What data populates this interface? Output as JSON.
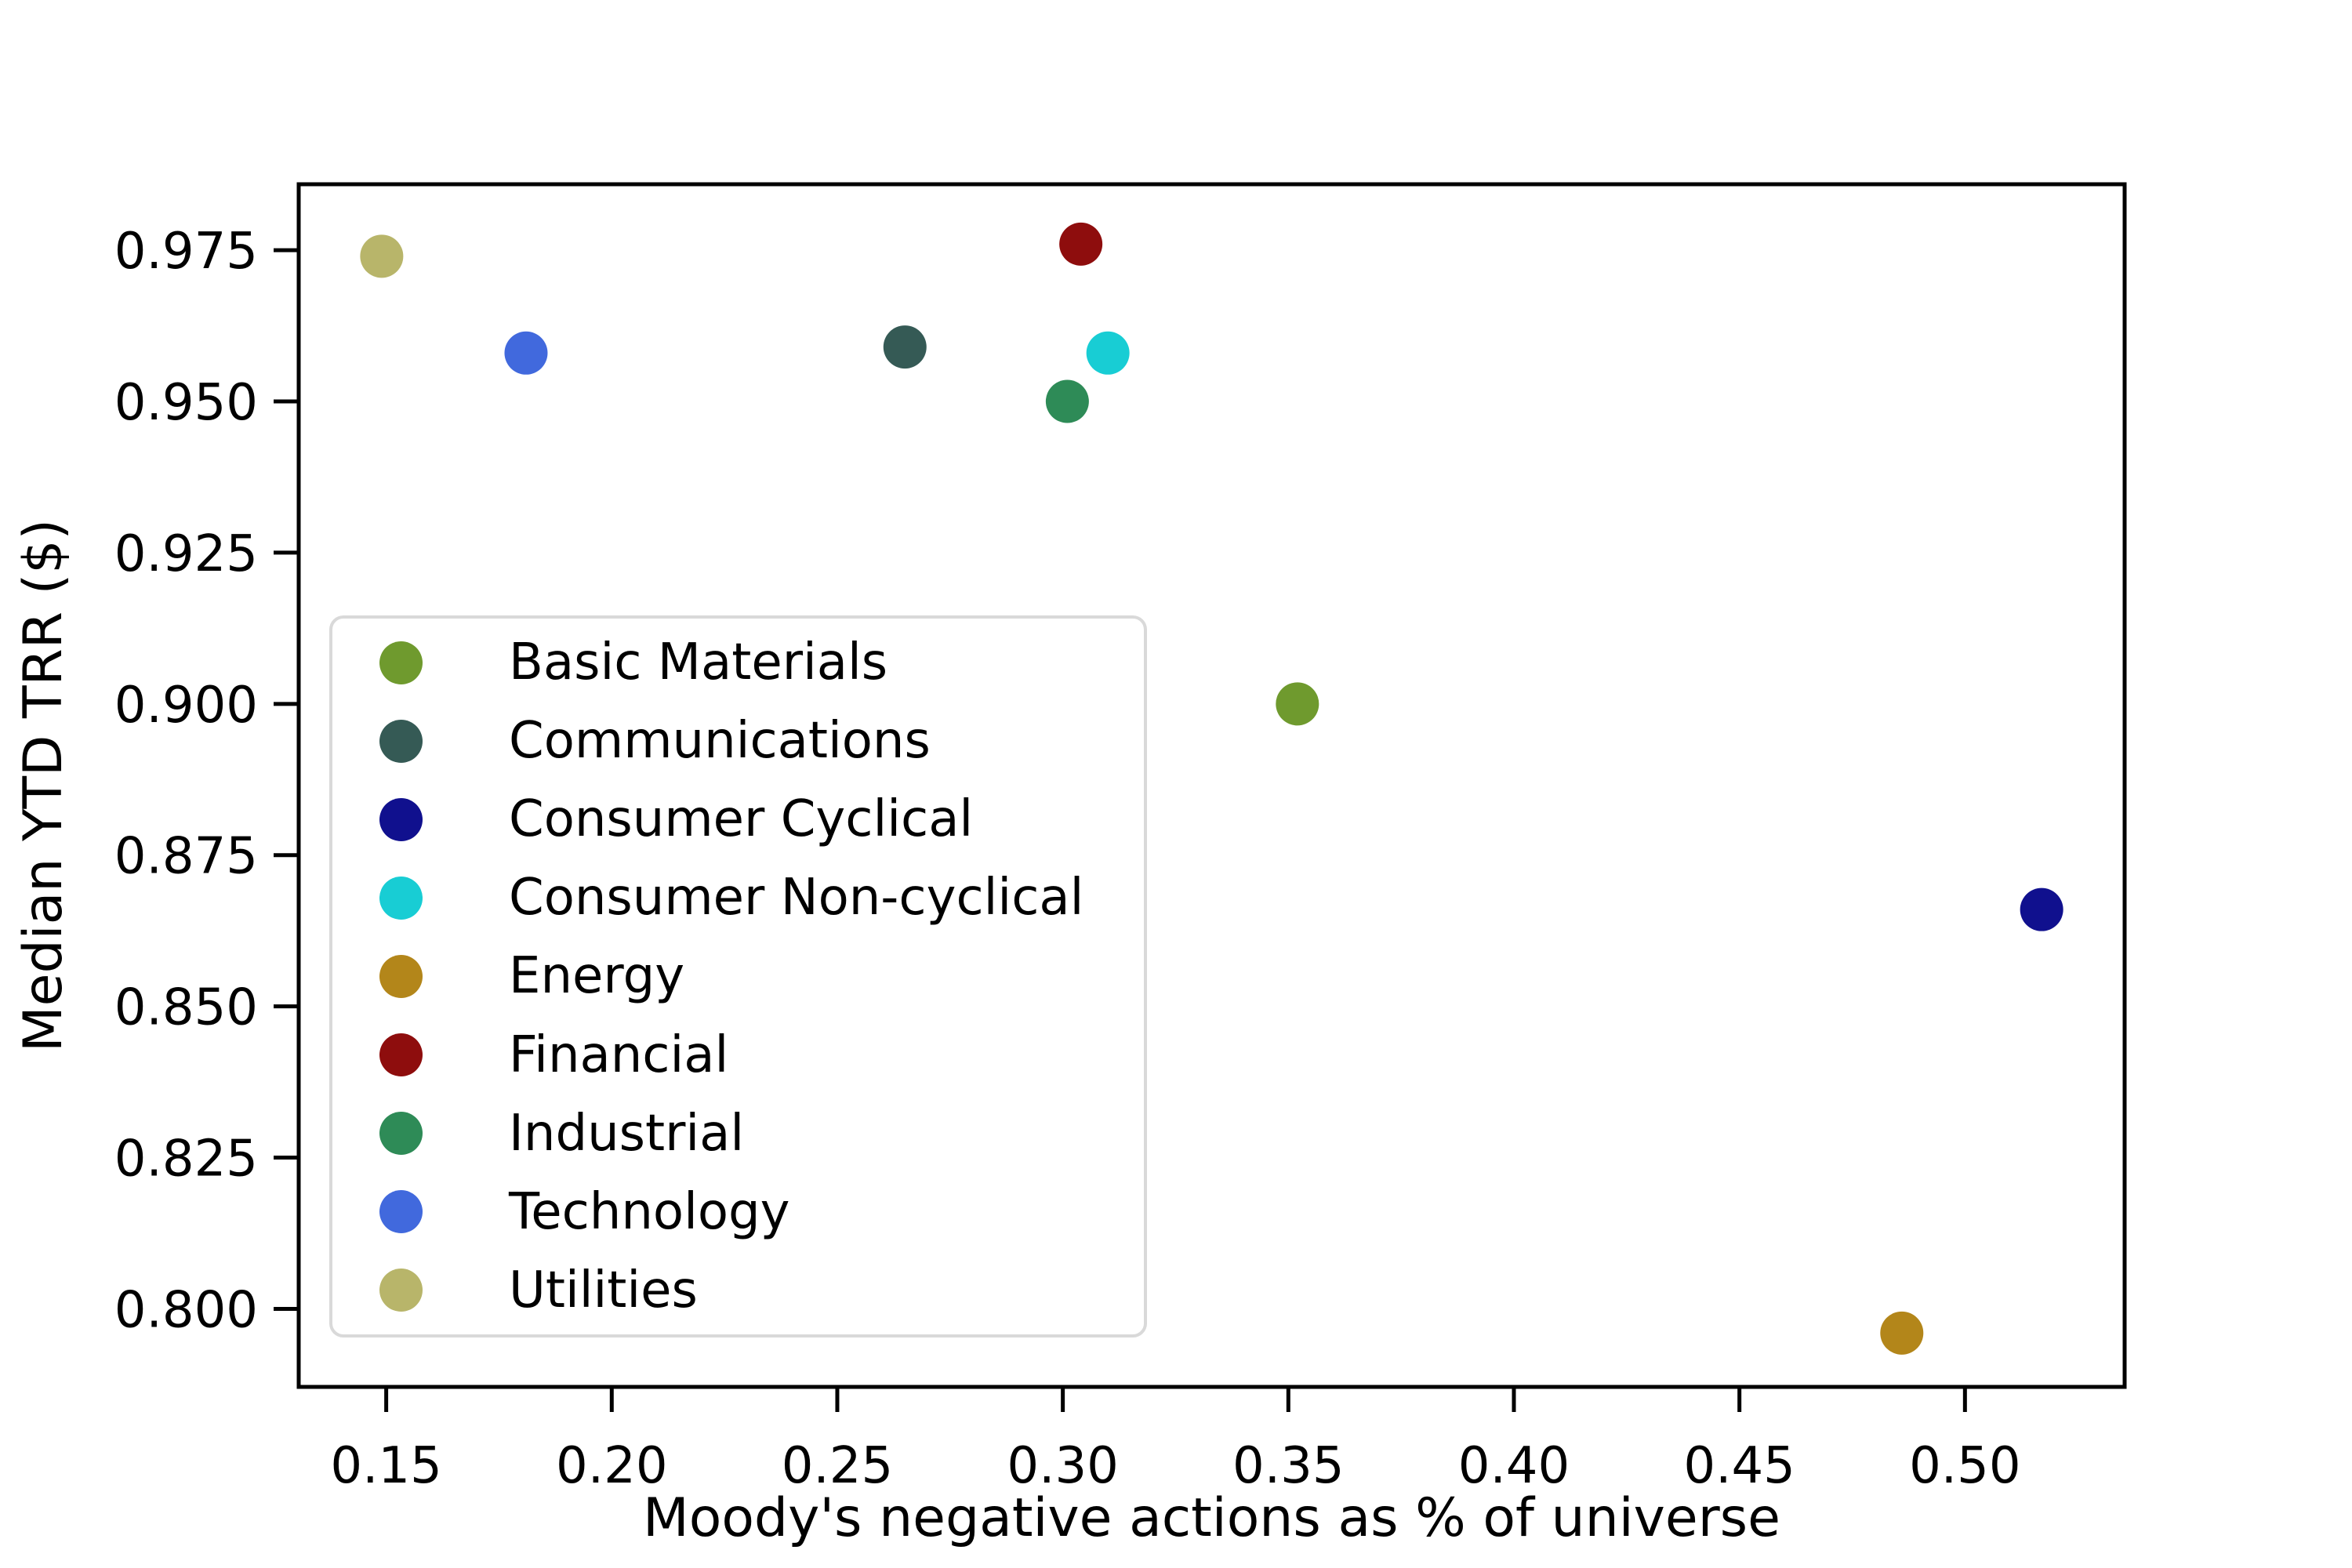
{
  "chart_data": {
    "type": "scatter",
    "title": "",
    "xlabel": "Moody's negative actions as % of universe",
    "ylabel": "Median YTD TRR ($)",
    "xlim": [
      0.1306,
      0.5354
    ],
    "ylim": [
      0.7871,
      0.9859
    ],
    "grid": false,
    "legend_position": "lower-left-inside",
    "xticks": {
      "values": [
        0.15,
        0.2,
        0.25,
        0.3,
        0.35,
        0.4,
        0.45,
        0.5
      ],
      "labels": [
        "0.15",
        "0.20",
        "0.25",
        "0.30",
        "0.35",
        "0.40",
        "0.45",
        "0.50"
      ]
    },
    "yticks": {
      "values": [
        0.8,
        0.825,
        0.85,
        0.875,
        0.9,
        0.925,
        0.95,
        0.975
      ],
      "labels": [
        "0.800",
        "0.825",
        "0.850",
        "0.875",
        "0.900",
        "0.925",
        "0.950",
        "0.975"
      ]
    },
    "series": [
      {
        "name": "Basic Materials",
        "color": "#6F9A2E",
        "points": [
          [
            0.352,
            0.9
          ]
        ]
      },
      {
        "name": "Communications",
        "color": "#355A55",
        "points": [
          [
            0.265,
            0.959
          ]
        ]
      },
      {
        "name": "Consumer Cyclical",
        "color": "#10108E",
        "points": [
          [
            0.517,
            0.866
          ]
        ]
      },
      {
        "name": "Consumer Non-cyclical",
        "color": "#18CDD4",
        "points": [
          [
            0.31,
            0.958
          ]
        ]
      },
      {
        "name": "Energy",
        "color": "#B3861A",
        "points": [
          [
            0.486,
            0.796
          ]
        ]
      },
      {
        "name": "Financial",
        "color": "#8E0D0D",
        "points": [
          [
            0.304,
            0.976
          ]
        ]
      },
      {
        "name": "Industrial",
        "color": "#2E8B57",
        "points": [
          [
            0.301,
            0.95
          ]
        ]
      },
      {
        "name": "Technology",
        "color": "#4169DD",
        "points": [
          [
            0.181,
            0.958
          ]
        ]
      },
      {
        "name": "Utilities",
        "color": "#B8B56A",
        "points": [
          [
            0.149,
            0.974
          ]
        ]
      }
    ],
    "marker_radius_px": 27.5,
    "spine_color": "#000000"
  }
}
